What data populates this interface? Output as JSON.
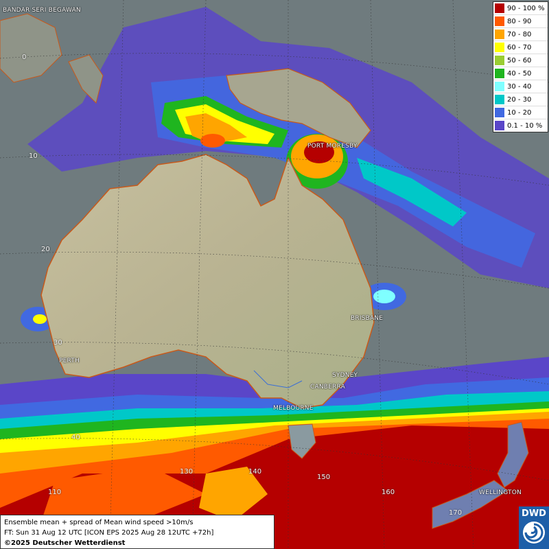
{
  "map": {
    "places": [
      {
        "id": "bandar-seri-begawan",
        "name": "BANDAR SERI BEGAWAN"
      },
      {
        "id": "port-moresby",
        "name": "PORT MORESBY"
      },
      {
        "id": "brisbane",
        "name": "BRISBANE"
      },
      {
        "id": "sydney",
        "name": "SYDNEY"
      },
      {
        "id": "canberra",
        "name": "CANBERRA"
      },
      {
        "id": "melbourne",
        "name": "MELBOURNE"
      },
      {
        "id": "perth",
        "name": "PERTH"
      },
      {
        "id": "wellington",
        "name": "WELLINGTON"
      }
    ],
    "gridlabels": [
      "0",
      "10",
      "20",
      "30",
      "40",
      "130",
      "140",
      "150",
      "160",
      "170",
      "110"
    ]
  },
  "legend": {
    "entries": [
      {
        "label": "90 - 100 %",
        "color": "#b50000"
      },
      {
        "label": "80 - 90",
        "color": "#ff5a00"
      },
      {
        "label": "70 - 80",
        "color": "#ffa500"
      },
      {
        "label": "60 - 70",
        "color": "#ffff00"
      },
      {
        "label": "50 - 60",
        "color": "#9acd32"
      },
      {
        "label": "40 - 50",
        "color": "#1fb51f"
      },
      {
        "label": "30 - 40",
        "color": "#7fffff"
      },
      {
        "label": "20 - 30",
        "color": "#00c8c8"
      },
      {
        "label": "10 - 20",
        "color": "#4169e1"
      },
      {
        "label": "0.1 - 10 %",
        "color": "#5a46c8"
      }
    ]
  },
  "info": {
    "line1": "Ensemble mean + spread of Mean wind speed >10m/s",
    "line2": "FT: Sun 31 Aug 12 UTC [ICON EPS 2025 Aug 28 12UTC +72h]",
    "line3": "©2025 Deutscher Wetterdienst"
  },
  "logo": {
    "text": "DWD"
  }
}
